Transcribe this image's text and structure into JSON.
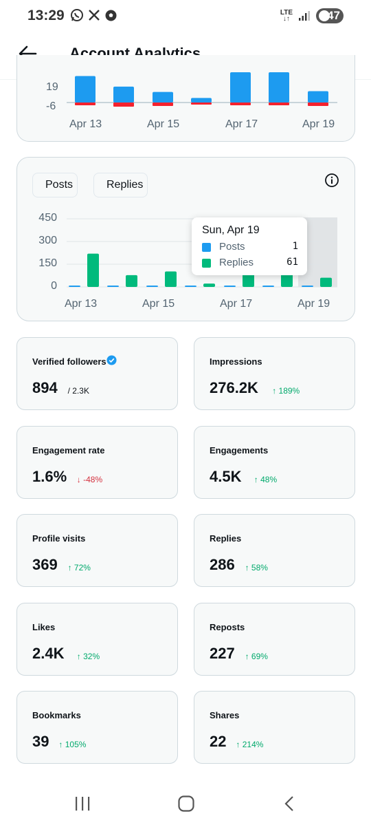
{
  "status_bar": {
    "time": "13:29",
    "network": "LTE",
    "battery": "47"
  },
  "header": {
    "title": "Account Analytics"
  },
  "top_chart": {
    "ticks": [
      "19",
      "-6"
    ],
    "x_labels": [
      "Apr 13",
      "Apr 15",
      "Apr 17",
      "Apr 19"
    ],
    "colors": {
      "positive": "#1d9bf0",
      "negative": "#f4212e"
    },
    "bars": [
      {
        "pos": 35,
        "neg": -4
      },
      {
        "pos": 21,
        "neg": -6
      },
      {
        "pos": 14,
        "neg": -5
      },
      {
        "pos": 6,
        "neg": -3
      },
      {
        "pos": 40,
        "neg": -4
      },
      {
        "pos": 40,
        "neg": -4
      },
      {
        "pos": 15,
        "neg": -5
      }
    ]
  },
  "chart_data": {
    "type": "bar",
    "categories": [
      "Apr 13",
      "Apr 14",
      "Apr 15",
      "Apr 16",
      "Apr 17",
      "Apr 18",
      "Apr 19"
    ],
    "x_tick_labels": [
      "Apr 13",
      "Apr 15",
      "Apr 17",
      "Apr 19"
    ],
    "y_ticks": [
      0,
      150,
      300,
      450
    ],
    "ylim": [
      0,
      450
    ],
    "series": [
      {
        "name": "Posts",
        "color": "#1d9bf0",
        "values": [
          6,
          2,
          2,
          2,
          3,
          3,
          1
        ]
      },
      {
        "name": "Replies",
        "color": "#00ba7c",
        "values": [
          220,
          78,
          102,
          22,
          90,
          95,
          61
        ]
      }
    ],
    "highlight_index": 6,
    "tooltip": {
      "title": "Sun, Apr 19",
      "rows": [
        {
          "label": "Posts",
          "value": "1",
          "color": "#1d9bf0"
        },
        {
          "label": "Replies",
          "value": "61",
          "color": "#00ba7c"
        }
      ]
    }
  },
  "metrics": [
    {
      "label": "Verified followers",
      "value": "894",
      "sub": "/ 2.3K",
      "delta": "",
      "direction": "none",
      "verified": true
    },
    {
      "label": "Impressions",
      "value": "276.2K",
      "sub": "",
      "delta": "↑ 189%",
      "direction": "up"
    },
    {
      "label": "Engagement rate",
      "value": "1.6%",
      "sub": "",
      "delta": "↓ -48%",
      "direction": "down"
    },
    {
      "label": "Engagements",
      "value": "4.5K",
      "sub": "",
      "delta": "↑ 48%",
      "direction": "up"
    },
    {
      "label": "Profile visits",
      "value": "369",
      "sub": "",
      "delta": "↑ 72%",
      "direction": "up"
    },
    {
      "label": "Replies",
      "value": "286",
      "sub": "",
      "delta": "↑ 58%",
      "direction": "up"
    },
    {
      "label": "Likes",
      "value": "2.4K",
      "sub": "",
      "delta": "↑ 32%",
      "direction": "up"
    },
    {
      "label": "Reposts",
      "value": "227",
      "sub": "",
      "delta": "↑ 69%",
      "direction": "up"
    },
    {
      "label": "Bookmarks",
      "value": "39",
      "sub": "",
      "delta": "↑ 105%",
      "direction": "up"
    },
    {
      "label": "Shares",
      "value": "22",
      "sub": "",
      "delta": "↑ 214%",
      "direction": "up"
    }
  ],
  "nav": {
    "icons": [
      "recent-apps-icon",
      "home-icon",
      "back-icon"
    ]
  }
}
